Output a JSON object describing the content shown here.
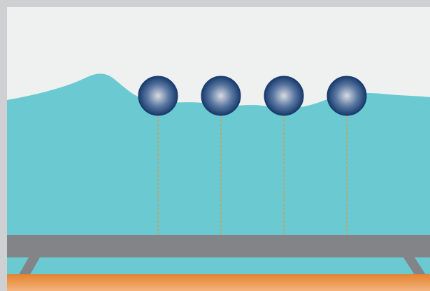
{
  "scene": {
    "buoy_count": 4,
    "colors": {
      "frame": "#cfd0d2",
      "sky": "#eff0f0",
      "water": "#6bcad1",
      "buoy_dark": "#173a6c",
      "buoy_light": "#d9dbe0",
      "tether": "#d49a4c",
      "platform": "#838487",
      "seabed_top": "#e5832f",
      "seabed_bottom": "#f2b37d"
    }
  }
}
